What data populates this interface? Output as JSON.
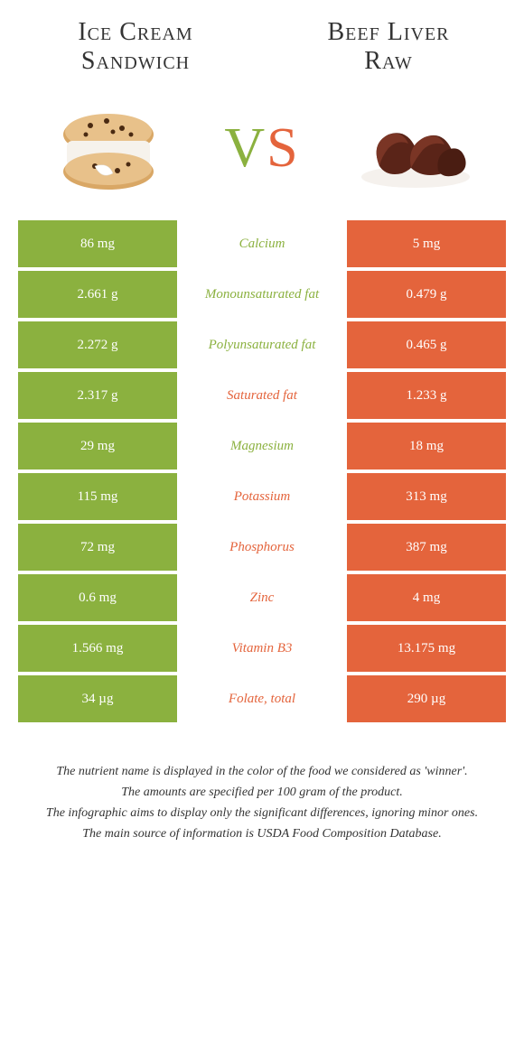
{
  "colors": {
    "green": "#8bb13f",
    "orange": "#e4643c",
    "text": "#333333",
    "white": "#ffffff"
  },
  "left_food": {
    "title_line1": "Ice Cream",
    "title_line2": "Sandwich"
  },
  "right_food": {
    "title_line1": "Beef Liver",
    "title_line2": "Raw"
  },
  "vs": {
    "v": "V",
    "s": "S"
  },
  "nutrients": [
    {
      "name": "Calcium",
      "left": "86 mg",
      "right": "5 mg",
      "winner": "left"
    },
    {
      "name": "Monounsaturated fat",
      "left": "2.661 g",
      "right": "0.479 g",
      "winner": "left"
    },
    {
      "name": "Polyunsaturated fat",
      "left": "2.272 g",
      "right": "0.465 g",
      "winner": "left"
    },
    {
      "name": "Saturated fat",
      "left": "2.317 g",
      "right": "1.233 g",
      "winner": "right"
    },
    {
      "name": "Magnesium",
      "left": "29 mg",
      "right": "18 mg",
      "winner": "left"
    },
    {
      "name": "Potassium",
      "left": "115 mg",
      "right": "313 mg",
      "winner": "right"
    },
    {
      "name": "Phosphorus",
      "left": "72 mg",
      "right": "387 mg",
      "winner": "right"
    },
    {
      "name": "Zinc",
      "left": "0.6 mg",
      "right": "4 mg",
      "winner": "right"
    },
    {
      "name": "Vitamin B3",
      "left": "1.566 mg",
      "right": "13.175 mg",
      "winner": "right"
    },
    {
      "name": "Folate, total",
      "left": "34 µg",
      "right": "290 µg",
      "winner": "right"
    }
  ],
  "footer": {
    "line1": "The nutrient name is displayed in the color of the food we considered as 'winner'.",
    "line2": "The amounts are specified per 100 gram of the product.",
    "line3": "The infographic aims to display only the significant differences, ignoring minor ones.",
    "line4": "The main source of information is USDA Food Composition Database."
  }
}
